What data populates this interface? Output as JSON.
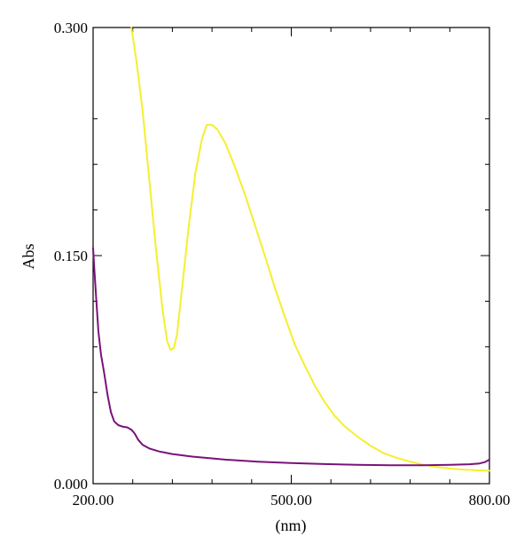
{
  "chart_data": {
    "type": "line",
    "title": "",
    "xlabel": "(nm)",
    "ylabel": "Abs",
    "xlim": [
      200,
      800
    ],
    "ylim": [
      0,
      0.3
    ],
    "x_tick_labels": [
      {
        "value": 200,
        "label": "200.00"
      },
      {
        "value": 500,
        "label": "500.00"
      },
      {
        "value": 800,
        "label": "800.00"
      }
    ],
    "y_tick_labels": [
      {
        "value": 0,
        "label": "0.000"
      },
      {
        "value": 0.15,
        "label": "0.150"
      },
      {
        "value": 0.3,
        "label": "0.300"
      }
    ],
    "x_minor_ticks": [
      260,
      320,
      380,
      440,
      560,
      620,
      680,
      740
    ],
    "y_minor_ticks": [
      0.06,
      0.09,
      0.12,
      0.18,
      0.21,
      0.24
    ],
    "grid": false,
    "series": [
      {
        "color": "#f5ef2e",
        "points": [
          [
            258,
            0.3
          ],
          [
            265,
            0.28
          ],
          [
            275,
            0.245
          ],
          [
            285,
            0.2
          ],
          [
            295,
            0.155
          ],
          [
            305,
            0.115
          ],
          [
            312,
            0.094
          ],
          [
            317,
            0.088
          ],
          [
            322,
            0.089
          ],
          [
            327,
            0.098
          ],
          [
            335,
            0.13
          ],
          [
            345,
            0.17
          ],
          [
            355,
            0.205
          ],
          [
            365,
            0.227
          ],
          [
            372,
            0.236
          ],
          [
            380,
            0.236
          ],
          [
            388,
            0.233
          ],
          [
            400,
            0.224
          ],
          [
            415,
            0.208
          ],
          [
            430,
            0.19
          ],
          [
            445,
            0.17
          ],
          [
            460,
            0.15
          ],
          [
            475,
            0.129
          ],
          [
            490,
            0.11
          ],
          [
            505,
            0.092
          ],
          [
            520,
            0.078
          ],
          [
            535,
            0.065
          ],
          [
            550,
            0.054
          ],
          [
            565,
            0.045
          ],
          [
            580,
            0.038
          ],
          [
            600,
            0.031
          ],
          [
            620,
            0.025
          ],
          [
            640,
            0.02
          ],
          [
            660,
            0.017
          ],
          [
            680,
            0.0145
          ],
          [
            700,
            0.0125
          ],
          [
            720,
            0.011
          ],
          [
            740,
            0.01
          ],
          [
            760,
            0.0093
          ],
          [
            780,
            0.0088
          ],
          [
            800,
            0.0085
          ]
        ]
      },
      {
        "color": "#7a127a",
        "points": [
          [
            200,
            0.155
          ],
          [
            202,
            0.14
          ],
          [
            205,
            0.12
          ],
          [
            208,
            0.1
          ],
          [
            212,
            0.085
          ],
          [
            217,
            0.072
          ],
          [
            222,
            0.058
          ],
          [
            227,
            0.047
          ],
          [
            232,
            0.041
          ],
          [
            238,
            0.0385
          ],
          [
            245,
            0.0375
          ],
          [
            252,
            0.037
          ],
          [
            258,
            0.0355
          ],
          [
            263,
            0.033
          ],
          [
            268,
            0.029
          ],
          [
            275,
            0.0255
          ],
          [
            285,
            0.0232
          ],
          [
            300,
            0.0212
          ],
          [
            320,
            0.0195
          ],
          [
            350,
            0.0178
          ],
          [
            400,
            0.0158
          ],
          [
            450,
            0.0145
          ],
          [
            500,
            0.0136
          ],
          [
            550,
            0.0129
          ],
          [
            600,
            0.0124
          ],
          [
            650,
            0.0121
          ],
          [
            700,
            0.0121
          ],
          [
            740,
            0.0124
          ],
          [
            770,
            0.0128
          ],
          [
            785,
            0.0133
          ],
          [
            793,
            0.0142
          ],
          [
            800,
            0.0158
          ]
        ]
      }
    ]
  }
}
